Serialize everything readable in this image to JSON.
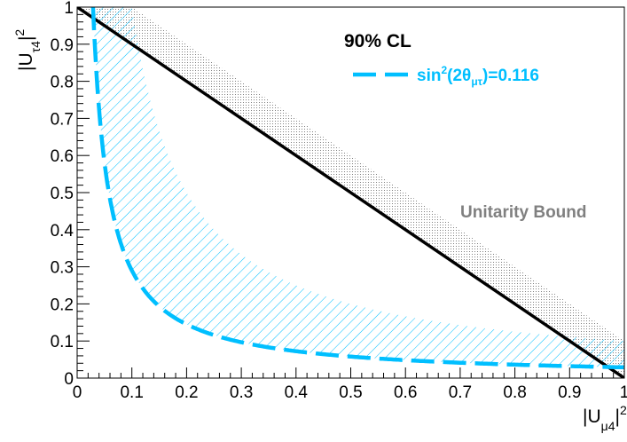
{
  "colors": {
    "contour": "#00bfff",
    "hatch": "#00bfff",
    "unitarity_line": "#000000",
    "unitarity_label": "#808080",
    "dots": "#808080"
  },
  "labels": {
    "cl": "90% CL",
    "legend_sin": "sin",
    "legend_sup": "2",
    "legend_mid": "(2θ",
    "legend_sub": "μτ",
    "legend_end": ")=0.116",
    "unitarity": "Unitarity Bound",
    "x_main": "|U",
    "x_sub": "μ4",
    "x_end": "|",
    "x_sup": "2",
    "y_main": "|U",
    "y_sub": "τ4",
    "y_end": "|",
    "y_sup": "2"
  },
  "chart_data": {
    "type": "line",
    "xlim": [
      0,
      1
    ],
    "ylim": [
      0,
      1
    ],
    "xticks": [
      "0",
      "0.1",
      "0.2",
      "0.3",
      "0.4",
      "0.5",
      "0.6",
      "0.7",
      "0.8",
      "0.9",
      "1"
    ],
    "yticks": [
      "0",
      "0.1",
      "0.2",
      "0.3",
      "0.4",
      "0.5",
      "0.6",
      "0.7",
      "0.8",
      "0.9",
      "1"
    ],
    "xlabel": "|Uμ4|²",
    "ylabel": "|Uτ4|²",
    "title": "90% CL",
    "grid": false,
    "legend": "top-right",
    "series": [
      {
        "name": "sin²(2θμτ)=0.116",
        "style": "dashed",
        "constant": 0.029
      },
      {
        "name": "Unitarity Bound",
        "style": "solid",
        "x": [
          0,
          1
        ],
        "y": [
          1,
          0
        ]
      }
    ],
    "excluded_region": {
      "hatched_side": "above-right of contour",
      "outer_constant": 0.1
    },
    "unitarity_excluded_region": {
      "side": "above line",
      "width": 0.1
    }
  }
}
